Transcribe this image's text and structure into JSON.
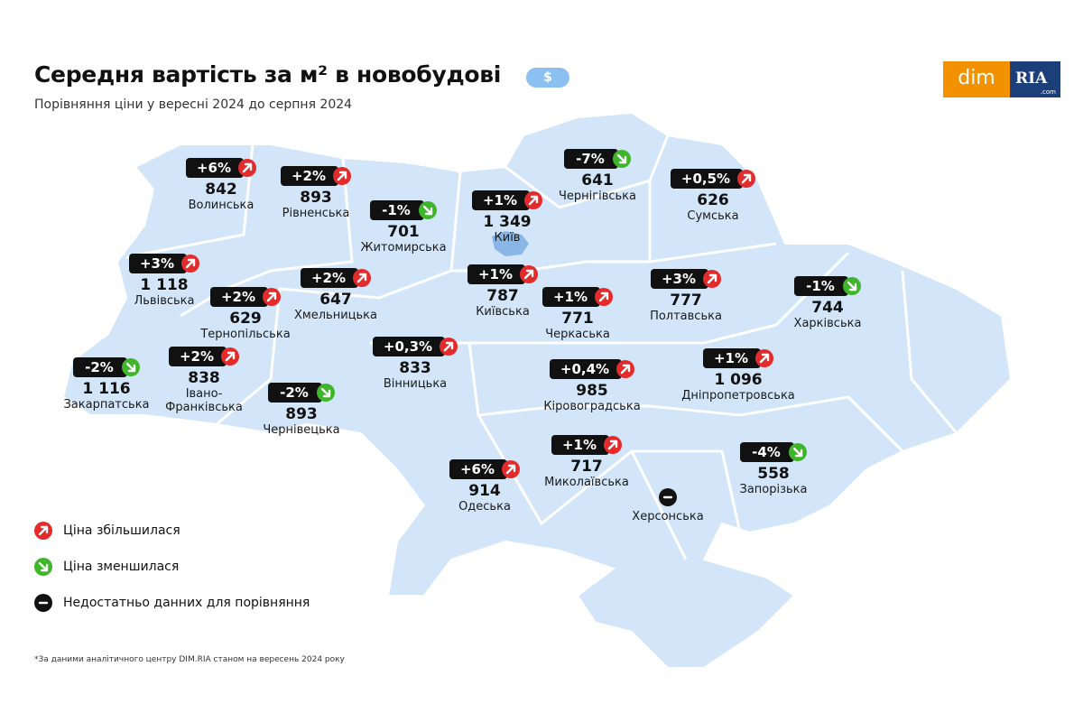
{
  "title": "Середня вартість за м² в новобудові",
  "currency": "$",
  "subtitle": "Порівняння ціни у вересні 2024 до серпня 2024",
  "logo": [
    "dim",
    "RIA",
    ".com"
  ],
  "legend": [
    {
      "label": "Ціна збільшилася",
      "color": "#e32b2b"
    },
    {
      "label": "Ціна зменшилася",
      "color": "#3fb52a"
    },
    {
      "label": "Недостатньо данних для порівняння",
      "color": "#111111"
    }
  ],
  "regions": [
    {
      "change": "+6%",
      "price": "842",
      "name": "Волинська",
      "color": "#e32b2b"
    },
    {
      "change": "+2%",
      "price": "893",
      "name": "Рівненська",
      "color": "#e32b2b"
    },
    {
      "change": "-1%",
      "price": "701",
      "name": "Житомирська",
      "color": "#3fb52a"
    },
    {
      "change": "+1%",
      "price": "1 349",
      "name": "Київ",
      "color": "#e32b2b"
    },
    {
      "change": "-7%",
      "price": "641",
      "name": "Чернігівська",
      "color": "#3fb52a"
    },
    {
      "change": "+0,5%",
      "price": "626",
      "name": "Сумська",
      "color": "#e32b2b"
    },
    {
      "change": "+3%",
      "price": "1 118",
      "name": "Львівська",
      "color": "#e32b2b"
    },
    {
      "change": "+2%",
      "price": "629",
      "name": "Тернопільська",
      "color": "#e32b2b"
    },
    {
      "change": "+2%",
      "price": "647",
      "name": "Хмельницька",
      "color": "#e32b2b"
    },
    {
      "change": "+1%",
      "price": "787",
      "name": "Київська",
      "color": "#e32b2b"
    },
    {
      "change": "+1%",
      "price": "771",
      "name": "Черкаська",
      "color": "#e32b2b"
    },
    {
      "change": "+3%",
      "price": "777",
      "name": "Полтавська",
      "color": "#e32b2b"
    },
    {
      "change": "-1%",
      "price": "744",
      "name": "Харківська",
      "color": "#3fb52a"
    },
    {
      "change": "-2%",
      "price": "1 116",
      "name": "Закарпатська",
      "color": "#3fb52a"
    },
    {
      "change": "+2%",
      "price": "838",
      "name": "Івано-\nФранківська",
      "color": "#e32b2b"
    },
    {
      "change": "-2%",
      "price": "893",
      "name": "Чернівецька",
      "color": "#3fb52a"
    },
    {
      "change": "+0,3%",
      "price": "833",
      "name": "Вінницька",
      "color": "#e32b2b"
    },
    {
      "change": "+0,4%",
      "price": "985",
      "name": "Кіровоградська",
      "color": "#e32b2b"
    },
    {
      "change": "+1%",
      "price": "1 096",
      "name": "Дніпропетровська",
      "color": "#e32b2b"
    },
    {
      "change": "+6%",
      "price": "914",
      "name": "Одеська",
      "color": "#e32b2b"
    },
    {
      "change": "+1%",
      "price": "717",
      "name": "Миколаївська",
      "color": "#e32b2b"
    },
    {
      "name": "Херсонська",
      "color": "#111111"
    },
    {
      "change": "-4%",
      "price": "558",
      "name": "Запорізька",
      "color": "#3fb52a"
    }
  ],
  "footnote": "*За даними аналітичного центру DIM.RIA станом на вересень 2024 року"
}
